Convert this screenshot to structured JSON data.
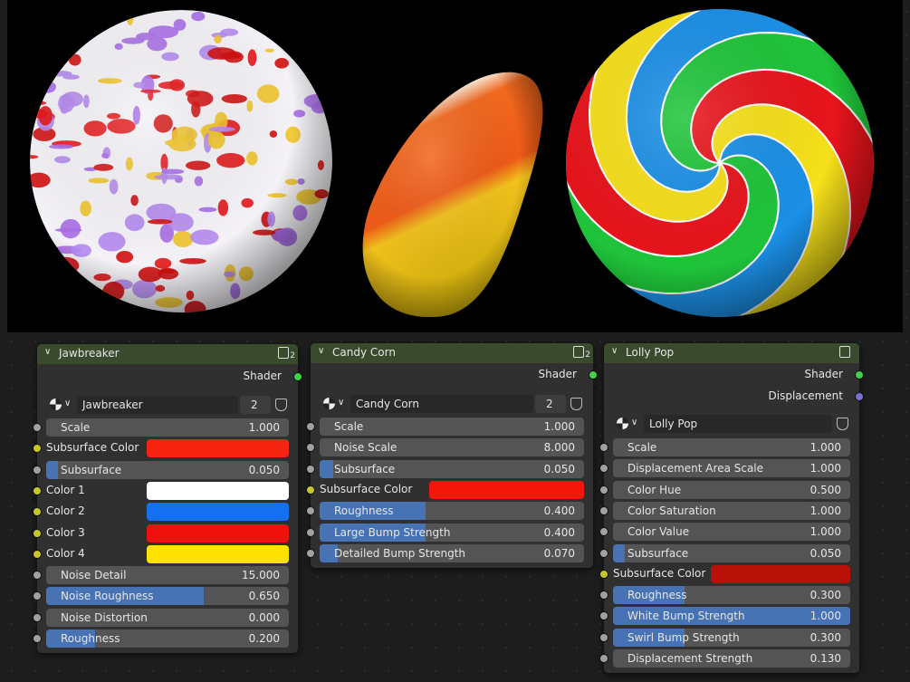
{
  "nodes": [
    {
      "title": "Jawbreaker",
      "users": "2",
      "outputs": [
        {
          "label": "Shader",
          "socket": "#3fd24a"
        }
      ],
      "material": {
        "name": "Jawbreaker",
        "users": "2"
      },
      "inputs": [
        {
          "label": "Scale",
          "value": "1.000"
        },
        {
          "label": "Subsurface Color",
          "color": "#f5230f"
        },
        {
          "label": "Subsurface",
          "value": "0.050",
          "slider": true
        },
        {
          "label": "Color 1",
          "color": "#ffffff"
        },
        {
          "label": "Color 2",
          "color": "#1470f0"
        },
        {
          "label": "Color 3",
          "color": "#f0100e"
        },
        {
          "label": "Color 4",
          "color": "#ffe200"
        },
        {
          "label": "Noise Detail",
          "value": "15.000"
        },
        {
          "label": "Noise Roughness",
          "value": "0.650",
          "slider": true
        },
        {
          "label": "Noise Distortion",
          "value": "0.000"
        },
        {
          "label": "Roughness",
          "value": "0.200",
          "slider": true
        }
      ]
    },
    {
      "title": "Candy Corn",
      "users": "2",
      "outputs": [
        {
          "label": "Shader",
          "socket": "#3fd24a"
        }
      ],
      "material": {
        "name": "Candy Corn",
        "users": "2"
      },
      "inputs": [
        {
          "label": "Scale",
          "value": "1.000"
        },
        {
          "label": "Noise Scale",
          "value": "8.000"
        },
        {
          "label": "Subsurface",
          "value": "0.050",
          "slider": true
        },
        {
          "label": "Subsurface Color",
          "color": "#f2170a"
        },
        {
          "label": "Roughness",
          "value": "0.400",
          "slider": true
        },
        {
          "label": "Large Bump Strength",
          "value": "0.400",
          "slider": true
        },
        {
          "label": "Detailed Bump Strength",
          "value": "0.070",
          "slider": true
        }
      ]
    },
    {
      "title": "Lolly Pop",
      "outputs": [
        {
          "label": "Shader",
          "socket": "#3fd24a"
        },
        {
          "label": "Displacement",
          "socket": "#7a70d8"
        }
      ],
      "material": {
        "name": "Lolly Pop"
      },
      "inputs": [
        {
          "label": "Scale",
          "value": "1.000"
        },
        {
          "label": "Displacement Area Scale",
          "value": "1.000"
        },
        {
          "label": "Color Hue",
          "value": "0.500"
        },
        {
          "label": "Color Saturation",
          "value": "1.000"
        },
        {
          "label": "Color Value",
          "value": "1.000"
        },
        {
          "label": "Subsurface",
          "value": "0.050",
          "slider": true
        },
        {
          "label": "Subsurface Color",
          "color": "#b81208"
        },
        {
          "label": "Roughness",
          "value": "0.300",
          "slider": true
        },
        {
          "label": "White Bump Strength",
          "value": "1.000",
          "slider": true
        },
        {
          "label": "Swirl Bump Strength",
          "value": "0.300",
          "slider": true
        },
        {
          "label": "Displacement Strength",
          "value": "0.130"
        }
      ]
    }
  ]
}
